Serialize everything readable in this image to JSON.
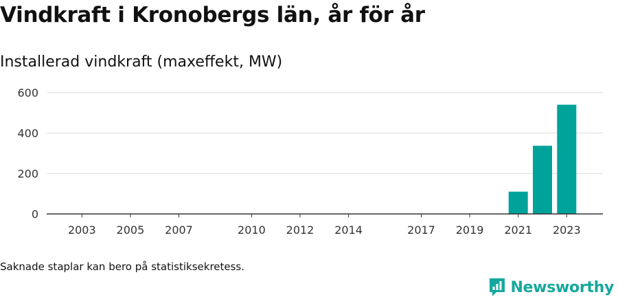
{
  "title": "Vindkraft i Kronobergs län, år för år",
  "subtitle": "Installerad vindkraft (maxeffekt, MW)",
  "note": "Saknade staplar kan bero på statistiksekretess.",
  "brand": {
    "name": "Newsworthy",
    "icon": "newsworthy-logo-icon",
    "color": "#14a89c"
  },
  "chart_data": {
    "type": "bar",
    "title": "",
    "xlabel": "",
    "ylabel": "",
    "ylim": [
      0,
      600
    ],
    "yticks": [
      0,
      200,
      400,
      600
    ],
    "xrange": [
      2002,
      2024
    ],
    "xticks": [
      "2003",
      "2005",
      "2007",
      "2010",
      "2012",
      "2014",
      "2017",
      "2019",
      "2021",
      "2023"
    ],
    "categories": [
      "2021",
      "2022",
      "2023"
    ],
    "values": [
      110,
      337,
      540
    ],
    "bar_color": "#00a39a",
    "grid": true
  }
}
